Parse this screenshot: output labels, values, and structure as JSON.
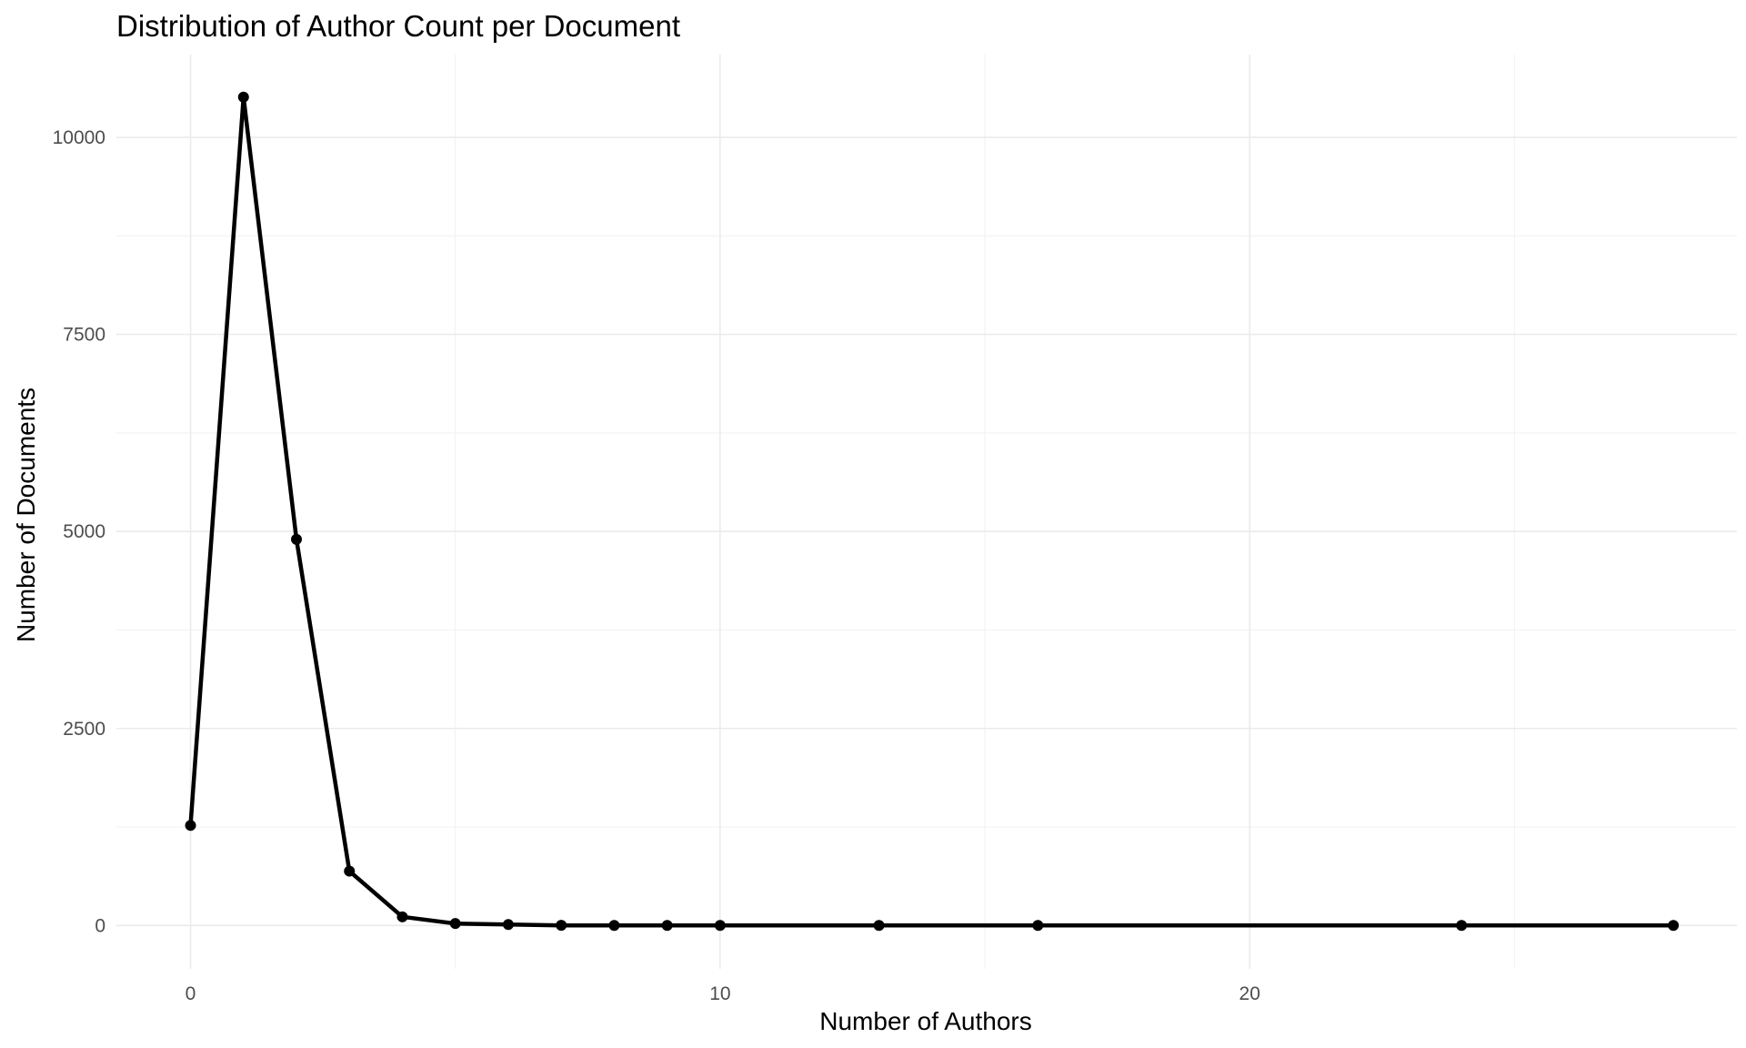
{
  "chart_data": {
    "type": "line",
    "title": "Distribution of Author Count per Document",
    "xlabel": "Number of Authors",
    "ylabel": "Number of Documents",
    "xlim": [
      -1.4,
      29.2
    ],
    "ylim": [
      -550,
      11050
    ],
    "x_ticks": [
      0,
      10,
      20
    ],
    "x_tick_labels": [
      "0",
      "10",
      "20"
    ],
    "x_minor_ticks": [
      5,
      15,
      25
    ],
    "y_ticks": [
      0,
      2500,
      5000,
      7500,
      10000
    ],
    "y_tick_labels": [
      "0",
      "2500",
      "5000",
      "7500",
      "10000"
    ],
    "y_minor_ticks": [
      1250,
      3750,
      6250,
      8750
    ],
    "grid": true,
    "legend": "none",
    "color": "#000000",
    "series": [
      {
        "x": [
          0,
          1,
          2,
          3,
          4,
          5,
          6,
          7,
          8,
          9,
          10,
          13,
          16,
          24,
          28
        ],
        "y": [
          1270,
          10510,
          4900,
          690,
          110,
          25,
          12,
          2,
          1,
          1,
          1,
          1,
          1,
          1,
          1
        ]
      }
    ]
  }
}
